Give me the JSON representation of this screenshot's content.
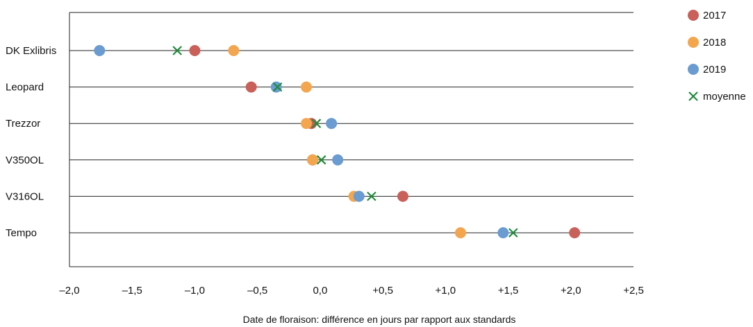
{
  "chart_data": {
    "type": "scatter",
    "orientation": "horizontal-dot-plot",
    "title": "",
    "xlabel": "Date de floraison: différence en jours par rapport aux standards",
    "ylabel": "",
    "xlim": [
      -2.0,
      2.5
    ],
    "xticks": [
      -2.0,
      -1.5,
      -1.0,
      -0.5,
      0.0,
      0.5,
      1.0,
      1.5,
      2.0,
      2.5
    ],
    "xtick_labels": [
      "–2,0",
      "–1,5",
      "–1,0",
      "–0,5",
      "0,0",
      "+0,5",
      "+1,0",
      "+1,5",
      "+2,0",
      "+2,5"
    ],
    "categories": [
      "DK Exlibris",
      "Leopard",
      "Trezzor",
      "V350OL",
      "V316OL",
      "Tempo"
    ],
    "grid": "horizontal lines per category",
    "legend_position": "right",
    "series": [
      {
        "name": "2017",
        "marker": "circle",
        "color": "#c9605a",
        "values": [
          -1.0,
          -0.55,
          -0.07,
          -0.06,
          0.66,
          2.03
        ]
      },
      {
        "name": "2018",
        "marker": "circle",
        "color": "#f4a64e",
        "values": [
          -0.69,
          -0.11,
          -0.11,
          -0.06,
          0.27,
          1.12
        ]
      },
      {
        "name": "2019",
        "marker": "circle",
        "color": "#6a9bd1",
        "values": [
          -1.76,
          -0.35,
          0.09,
          0.14,
          0.31,
          1.46
        ]
      },
      {
        "name": "moyenne",
        "marker": "x",
        "color": "#1e8c3a",
        "values": [
          -1.14,
          -0.34,
          -0.03,
          0.01,
          0.41,
          1.54
        ]
      }
    ]
  }
}
